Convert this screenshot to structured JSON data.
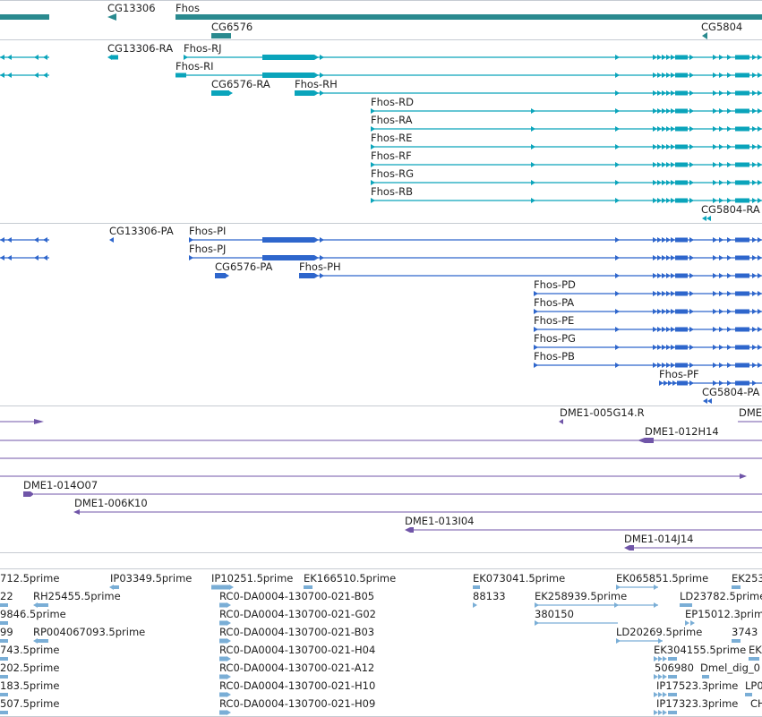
{
  "colors": {
    "gene": "#2a8a8f",
    "rna": "#0aa4bb",
    "protein": "#2e66cc",
    "bac": "#7055a8",
    "est": "#7aaed6",
    "divider": "#c6cbd2"
  },
  "track_labels": {
    "genes": {
      "cg13306": "CG13306",
      "fhos": "Fhos",
      "cg6576": "CG6576",
      "cg5804": "CG5804"
    },
    "transcripts": {
      "cg13306_ra": "CG13306-RA",
      "fhos_rj": "Fhos-RJ",
      "fhos_ri": "Fhos-RI",
      "cg6576_ra": "CG6576-RA",
      "fhos_rh": "Fhos-RH",
      "fhos_rd": "Fhos-RD",
      "fhos_ra": "Fhos-RA",
      "fhos_re": "Fhos-RE",
      "fhos_rf": "Fhos-RF",
      "fhos_rg": "Fhos-RG",
      "fhos_rb": "Fhos-RB",
      "cg5804_ra": "CG5804-RA"
    },
    "proteins": {
      "cg13306_pa": "CG13306-PA",
      "fhos_pi": "Fhos-PI",
      "fhos_pj": "Fhos-PJ",
      "cg6576_pa": "CG6576-PA",
      "fhos_ph": "Fhos-PH",
      "fhos_pd": "Fhos-PD",
      "fhos_pa": "Fhos-PA",
      "fhos_pe": "Fhos-PE",
      "fhos_pg": "Fhos-PG",
      "fhos_pb": "Fhos-PB",
      "fhos_pf": "Fhos-PF",
      "cg5804_pa": "CG5804-PA"
    },
    "bacs": {
      "dme1_005g14_r": "DME1-005G14.R",
      "dme_partial": "DME",
      "dme1_012h14": "DME1-012H14",
      "dme1_014o07": "DME1-014O07",
      "dme1_006k10": "DME1-006K10",
      "dme1_013i04": "DME1-013I04",
      "dme1_014j14": "DME1-014J14"
    },
    "ests": {
      "e01": "712.5prime",
      "e02": "IP03349.5prime",
      "e03": "IP10251.5prime",
      "e04": "EK166510.5prime",
      "e05": "EK073041.5prime",
      "e06": "EK065851.5prime",
      "e07": "EK253",
      "e08": "22",
      "e09": "RH25455.5prime",
      "e10": "RC0-DA0004-130700-021-B05",
      "e11": "88133",
      "e12": "EK258939.5prime",
      "e13": "LD23782.5prime",
      "e14": "9846.5prime",
      "e15": "RC0-DA0004-130700-021-G02",
      "e16": "380150",
      "e17": "EP15012.3prime",
      "e18": "99",
      "e19": "RP004067093.5prime",
      "e20": "RC0-DA0004-130700-021-B03",
      "e21": "LD20269.5prime",
      "e22": "3743",
      "e23": "743.5prime",
      "e24": "RC0-DA0004-130700-021-H04",
      "e25": "EK304155.5prime",
      "e26": "EK",
      "e27": "202.5prime",
      "e28": "RC0-DA0004-130700-021-A12",
      "e29": "506980",
      "e30": "Dmel_dig_0",
      "e31": "183.5prime",
      "e32": "RC0-DA0004-130700-021-H10",
      "e33": "IP17523.3prime",
      "e34": "LP0",
      "e35": "507.5prime",
      "e36": "RC0-DA0004-130700-021-H09",
      "e37": "IP17323.3prime",
      "e38": "CH"
    }
  }
}
